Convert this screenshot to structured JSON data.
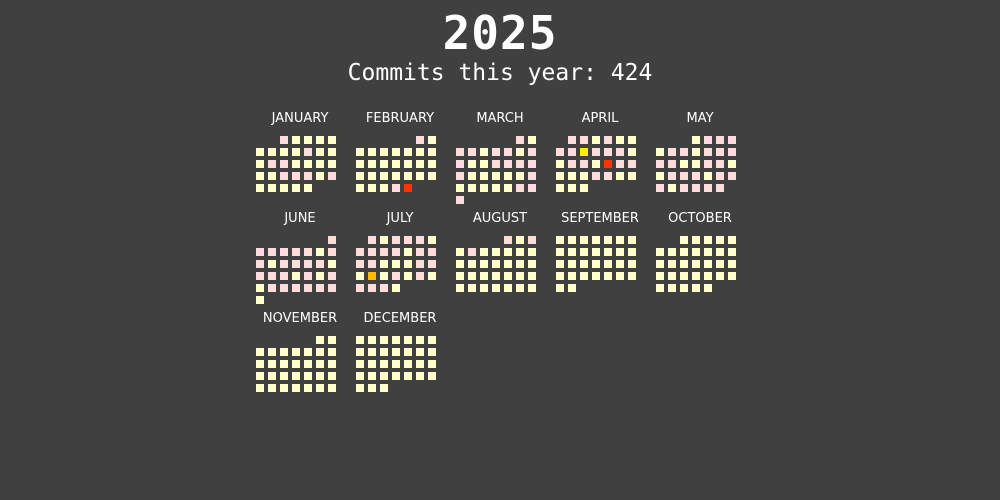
{
  "header": {
    "year": "2025",
    "subtitle": "Commits this year: 424"
  },
  "colors": {
    "background": "#404040",
    "level0": "#ffffc8",
    "level1": "#ffdcdc",
    "level2": "#ffee00",
    "level3": "#ffbb00",
    "level4": "#ff3300"
  },
  "chart_data": {
    "type": "heatmap",
    "title": "2025",
    "subtitle": "Commits this year: 424",
    "months": [
      {
        "name": "JANUARY",
        "days": 31,
        "levels": [
          1,
          0,
          0,
          0,
          0,
          0,
          0,
          0,
          0,
          1,
          0,
          0,
          0,
          1,
          1,
          0,
          0,
          0,
          0,
          0,
          0,
          1,
          1,
          1,
          0,
          1,
          0,
          0,
          0,
          0,
          0
        ]
      },
      {
        "name": "FEBRUARY",
        "days": 28,
        "levels": [
          1,
          0,
          0,
          0,
          0,
          0,
          0,
          0,
          0,
          0,
          0,
          0,
          0,
          0,
          0,
          0,
          0,
          0,
          0,
          0,
          0,
          0,
          0,
          0,
          0,
          0,
          1,
          4
        ]
      },
      {
        "name": "MARCH",
        "days": 31,
        "levels": [
          1,
          0,
          1,
          1,
          0,
          1,
          1,
          0,
          1,
          1,
          0,
          0,
          1,
          1,
          1,
          1,
          1,
          0,
          0,
          0,
          0,
          0,
          1,
          0,
          0,
          0,
          0,
          0,
          1,
          1,
          1
        ]
      },
      {
        "name": "APRIL",
        "days": 30,
        "levels": [
          1,
          1,
          0,
          1,
          0,
          0,
          1,
          1,
          2,
          1,
          1,
          1,
          0,
          0,
          1,
          1,
          0,
          4,
          1,
          1,
          0,
          0,
          0,
          1,
          1,
          0,
          0,
          0,
          0,
          0
        ]
      },
      {
        "name": "MAY",
        "days": 31,
        "levels": [
          0,
          1,
          1,
          1,
          0,
          1,
          1,
          0,
          1,
          1,
          1,
          1,
          1,
          0,
          0,
          1,
          1,
          0,
          0,
          1,
          1,
          1,
          0,
          1,
          1,
          1,
          0,
          1,
          1,
          1,
          1
        ]
      },
      {
        "name": "JUNE",
        "days": 30,
        "levels": [
          1,
          1,
          1,
          1,
          1,
          1,
          0,
          1,
          1,
          0,
          1,
          1,
          1,
          1,
          0,
          1,
          1,
          1,
          0,
          1,
          0,
          1,
          0,
          1,
          1,
          1,
          1,
          1,
          1,
          0
        ]
      },
      {
        "name": "JULY",
        "days": 31,
        "levels": [
          1,
          0,
          1,
          1,
          1,
          0,
          1,
          1,
          1,
          1,
          0,
          1,
          1,
          1,
          1,
          0,
          0,
          0,
          1,
          1,
          0,
          3,
          0,
          1,
          0,
          1,
          0,
          1,
          1,
          1,
          0
        ]
      },
      {
        "name": "AUGUST",
        "days": 31,
        "levels": [
          1,
          0,
          1,
          0,
          1,
          0,
          0,
          0,
          0,
          0,
          0,
          0,
          0,
          0,
          0,
          0,
          0,
          0,
          0,
          0,
          0,
          0,
          0,
          0,
          0,
          0,
          0,
          0,
          0,
          0,
          0
        ]
      },
      {
        "name": "SEPTEMBER",
        "days": 30,
        "levels": [
          0,
          0,
          0,
          0,
          0,
          0,
          0,
          0,
          0,
          0,
          0,
          0,
          0,
          0,
          0,
          0,
          0,
          0,
          0,
          0,
          0,
          0,
          0,
          0,
          0,
          0,
          0,
          0,
          0,
          0
        ]
      },
      {
        "name": "OCTOBER",
        "days": 31,
        "levels": [
          0,
          0,
          0,
          0,
          0,
          0,
          0,
          0,
          0,
          0,
          0,
          0,
          0,
          0,
          0,
          0,
          0,
          0,
          0,
          0,
          0,
          0,
          0,
          0,
          0,
          0,
          0,
          0,
          0,
          0,
          0
        ]
      },
      {
        "name": "NOVEMBER",
        "days": 30,
        "levels": [
          0,
          0,
          0,
          0,
          0,
          0,
          0,
          0,
          0,
          0,
          0,
          0,
          0,
          0,
          0,
          0,
          0,
          0,
          0,
          0,
          0,
          0,
          0,
          0,
          0,
          0,
          0,
          0,
          0,
          0
        ]
      },
      {
        "name": "DECEMBER",
        "days": 31,
        "levels": [
          0,
          0,
          0,
          0,
          0,
          0,
          0,
          0,
          0,
          0,
          0,
          0,
          0,
          0,
          0,
          0,
          0,
          0,
          0,
          0,
          0,
          0,
          0,
          0,
          0,
          0,
          0,
          0,
          0,
          0,
          0
        ]
      }
    ]
  }
}
